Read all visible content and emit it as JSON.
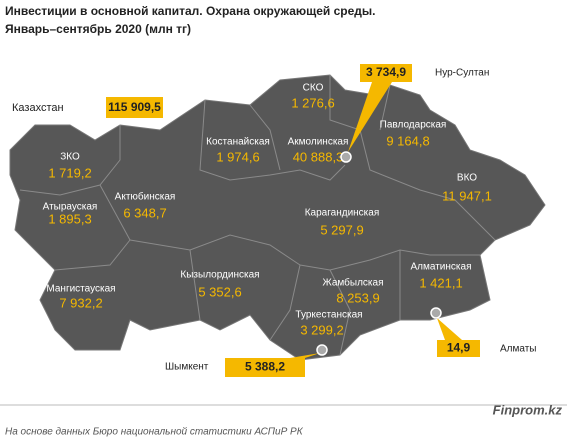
{
  "header": {
    "title": "Инвестиции в основной капитал. Охрана окружающей среды.",
    "subtitle": "Январь–сентябрь 2020  (млн тг)"
  },
  "total": {
    "label": "Казахстан",
    "value": "115 909,5"
  },
  "regions": [
    {
      "name": "СКО",
      "value": "1 276,6"
    },
    {
      "name": "Костанайская",
      "value": "1 974,6"
    },
    {
      "name": "Акмолинская",
      "value": "40 888,3"
    },
    {
      "name": "Павлодарская",
      "value": "9 164,8"
    },
    {
      "name": "ЗКО",
      "value": "1 719,2"
    },
    {
      "name": "ВКО",
      "value": "11 947,1"
    },
    {
      "name": "Атырауская",
      "value": "1 895,3"
    },
    {
      "name": "Актюбинская",
      "value": "6 348,7"
    },
    {
      "name": "Карагандинская",
      "value": "5 297,9"
    },
    {
      "name": "Алматинская",
      "value": "1 421,1"
    },
    {
      "name": "Кызылординская",
      "value": "5 352,6"
    },
    {
      "name": "Жамбылская",
      "value": "8 253,9"
    },
    {
      "name": "Мангистауская",
      "value": "7 932,2"
    },
    {
      "name": "Туркестанская",
      "value": "3 299,2"
    }
  ],
  "cities": [
    {
      "name": "Нур-Султан",
      "value": "3 734,9"
    },
    {
      "name": "Алматы",
      "value": "14,9"
    },
    {
      "name": "Шымкент",
      "value": "5 388,2"
    }
  ],
  "footer": {
    "source": "На основе данных Бюро национальной статистики АСПиР РК",
    "brand": "Finprom.kz"
  }
}
